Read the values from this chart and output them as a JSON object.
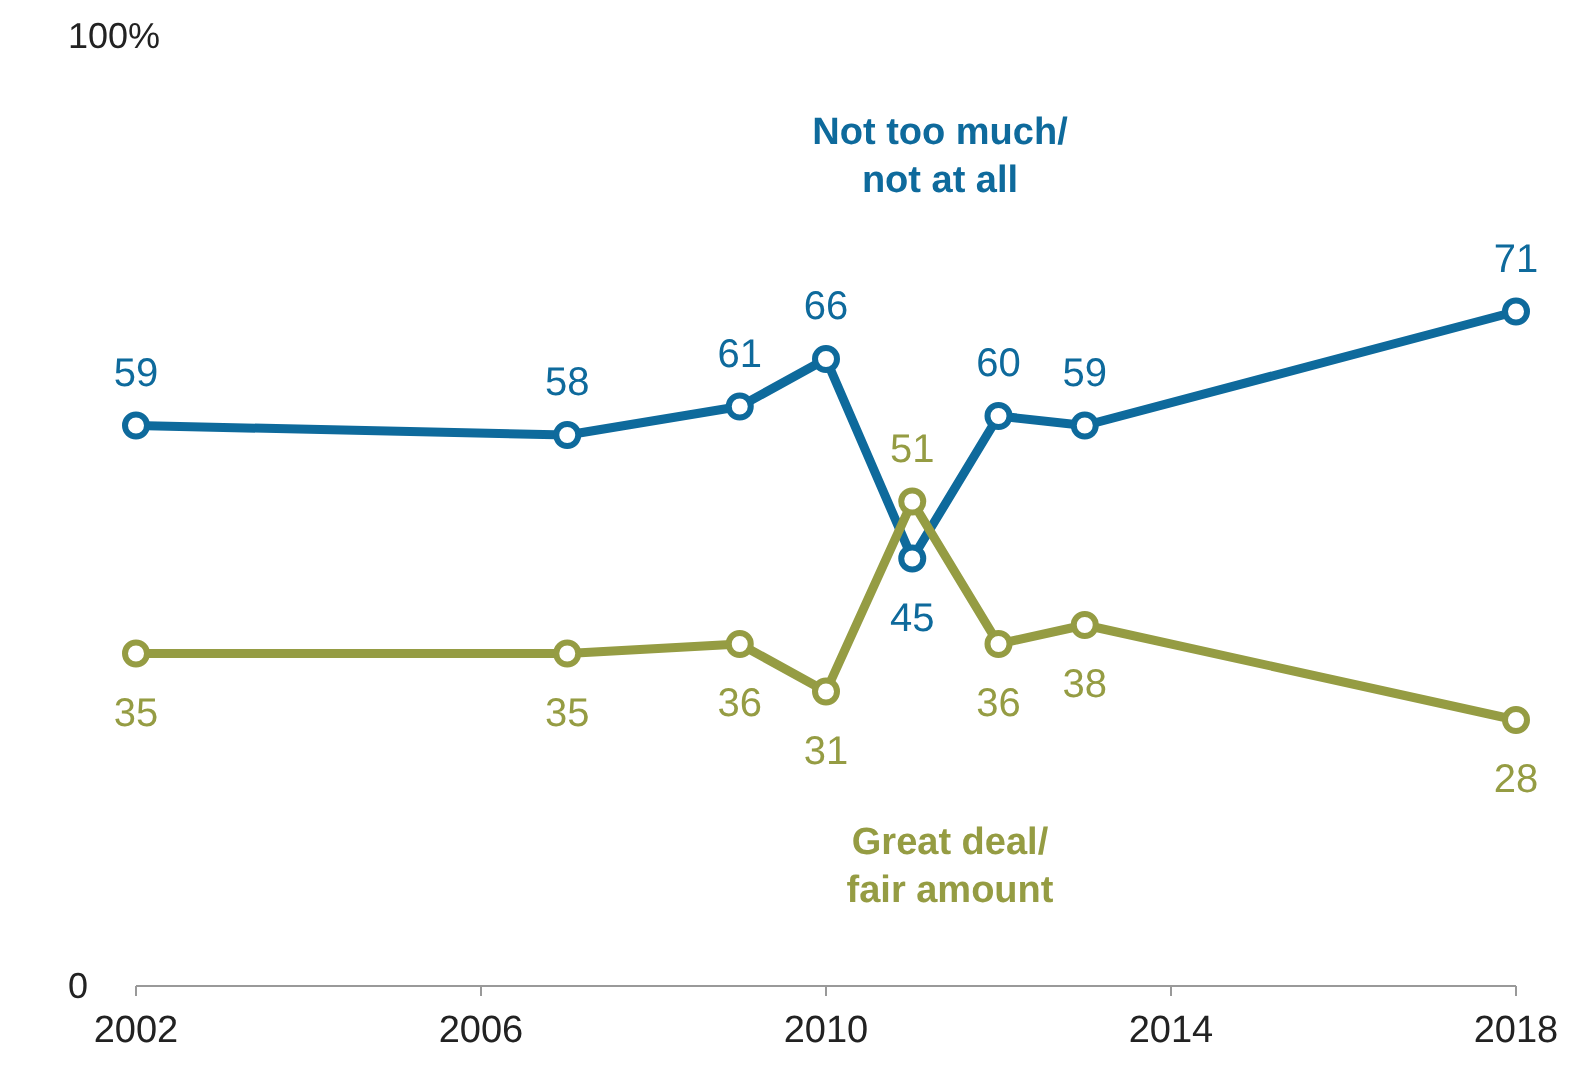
{
  "chart_data": {
    "type": "line",
    "x": [
      2002,
      2007,
      2009,
      2010,
      2011,
      2012,
      2013,
      2018
    ],
    "series": [
      {
        "name": "Not too much/ not at all",
        "color": "#0e6a9c",
        "values": [
          59,
          58,
          61,
          66,
          45,
          60,
          59,
          71
        ]
      },
      {
        "name": "Great deal/ fair amount",
        "color": "#959c43",
        "values": [
          35,
          35,
          36,
          31,
          51,
          36,
          38,
          28
        ]
      }
    ],
    "xlim": [
      2002,
      2018
    ],
    "xticks": [
      2002,
      2006,
      2010,
      2014,
      2018
    ],
    "ylim": [
      0,
      100
    ],
    "yticks": [
      0,
      {
        "value": 100,
        "label": "100%"
      }
    ],
    "data_labels": true,
    "marker": "circle",
    "grid": false,
    "line_style": "solid"
  }
}
